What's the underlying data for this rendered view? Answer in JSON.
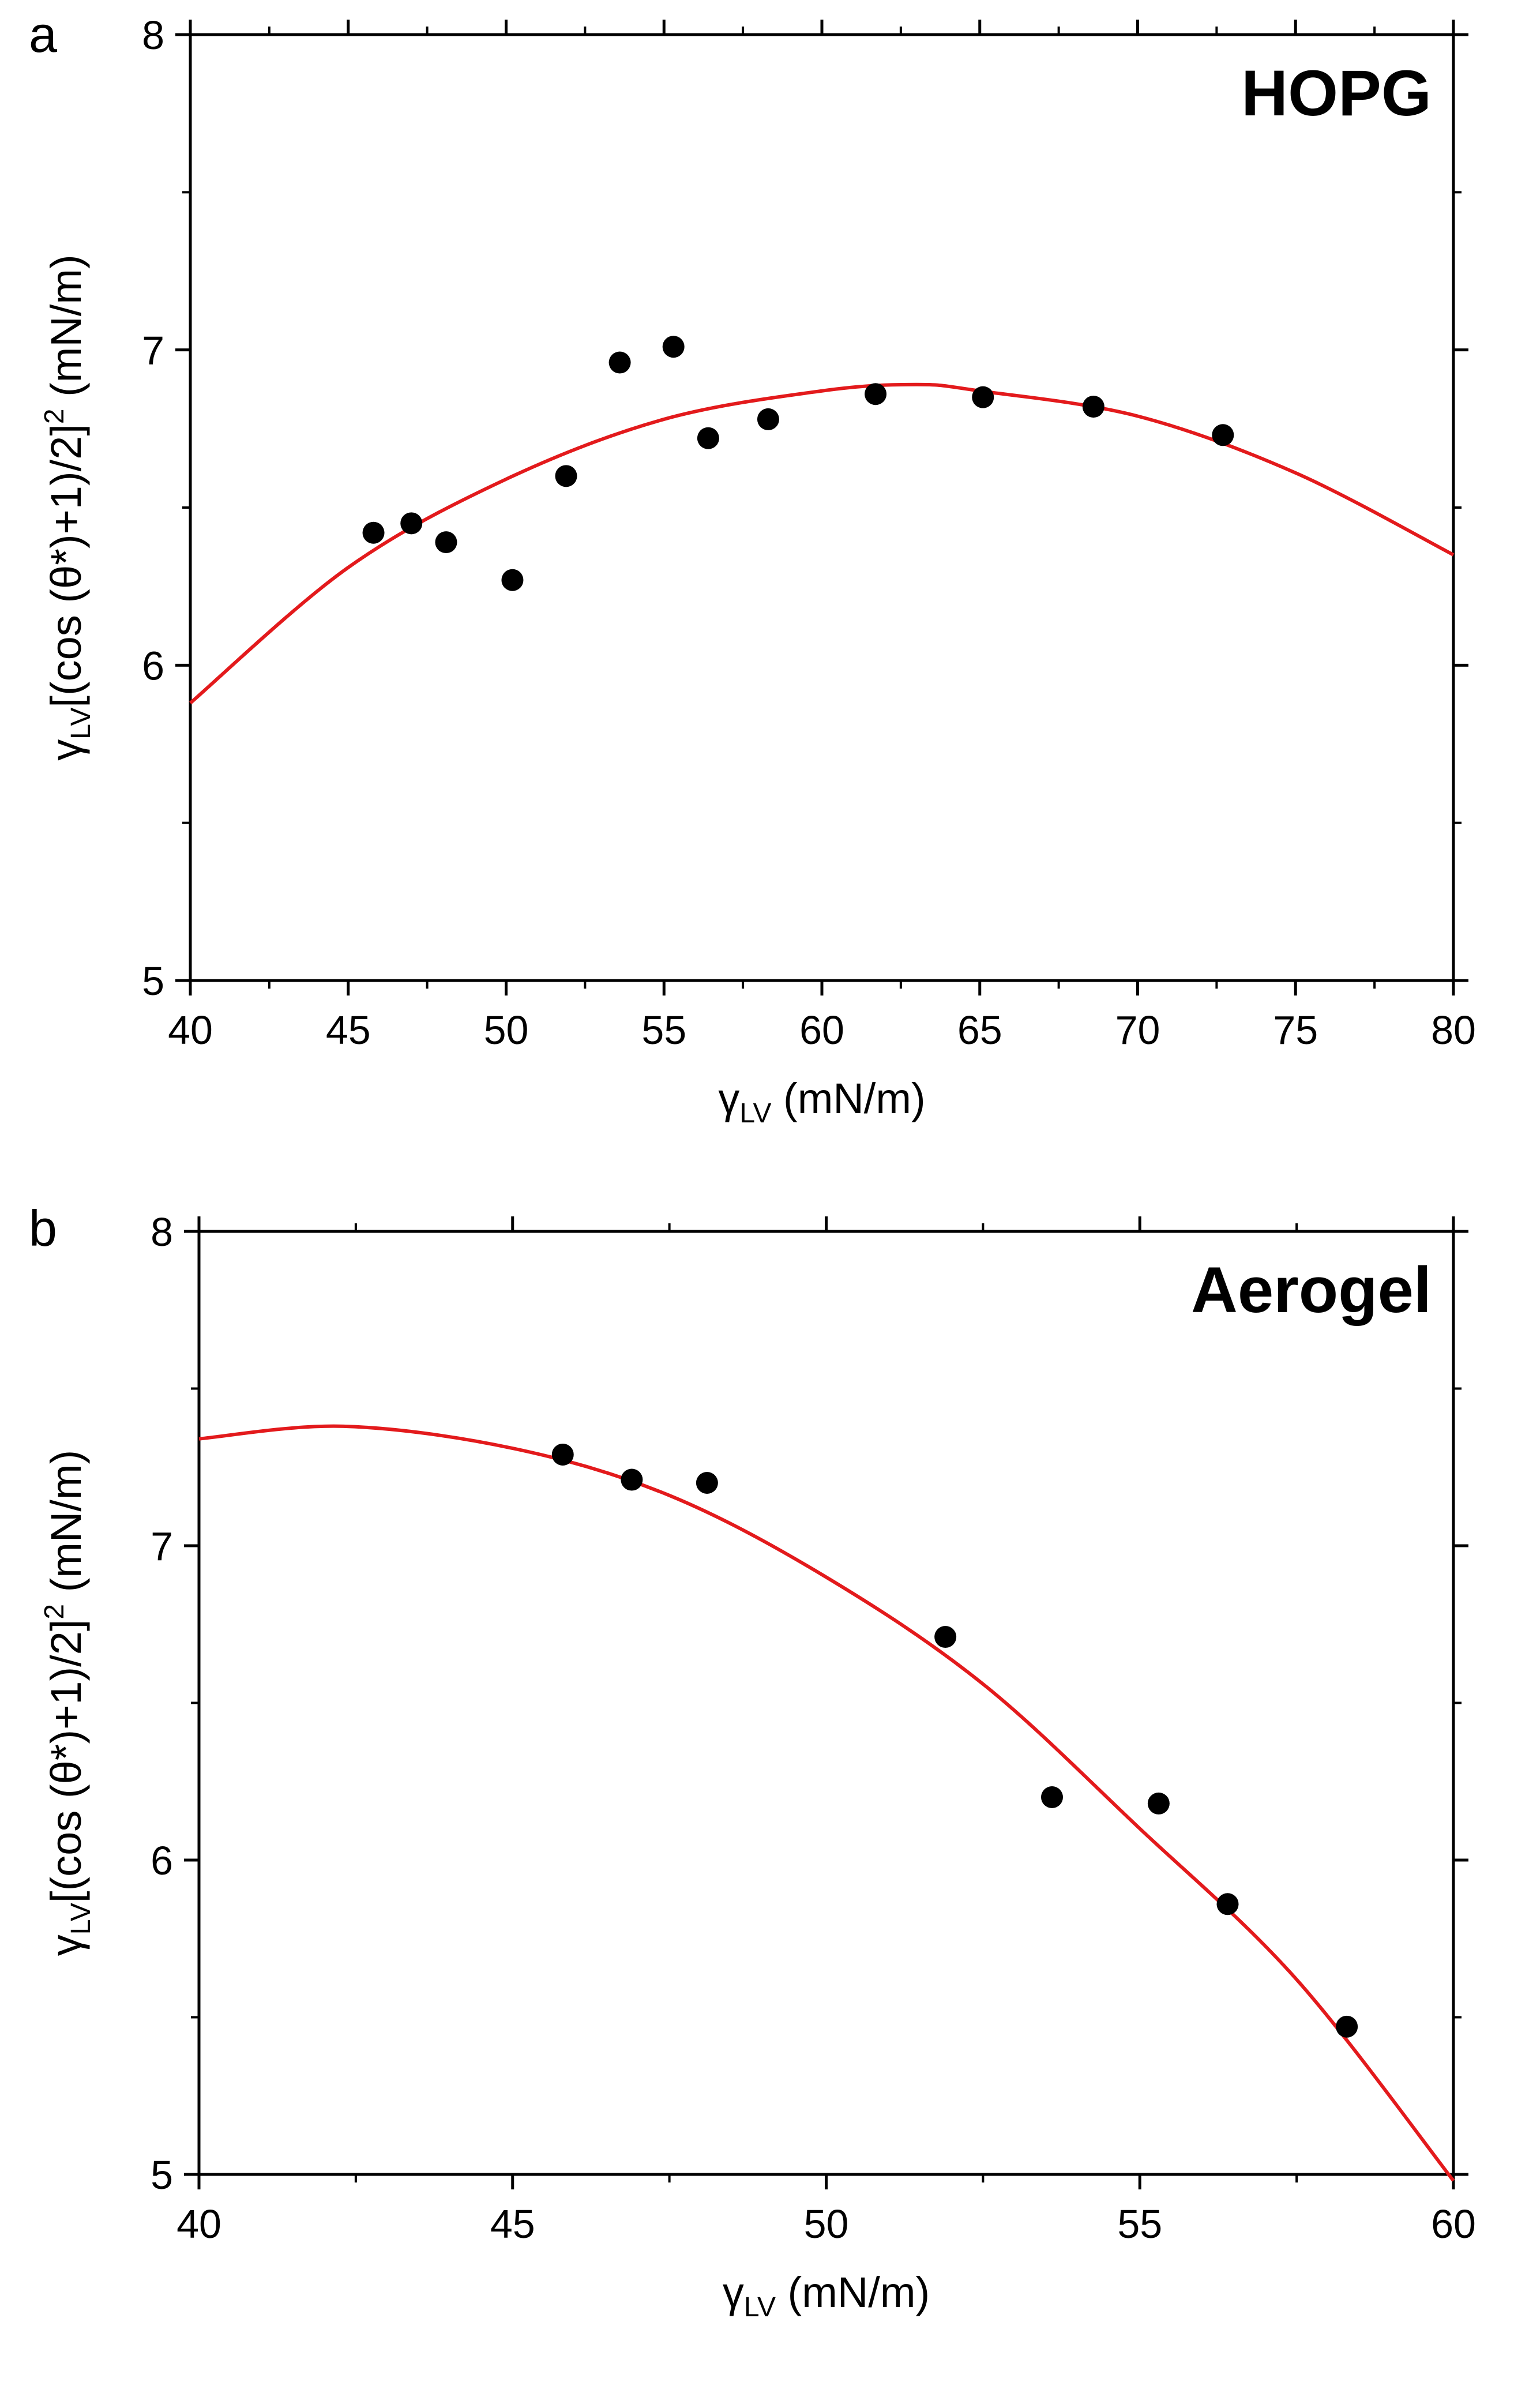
{
  "chart_data": [
    {
      "panel": "a",
      "type": "scatter",
      "title": "HOPG",
      "xlabel": {
        "symbol": "γ",
        "sub": "LV",
        "unit": " (mN/m)"
      },
      "ylabel": {
        "symbol": "γ",
        "sub": "LV",
        "expr": "[(cos (θ*)+1)/2]",
        "sup": "2",
        "unit": " (mN/m)"
      },
      "xlim": [
        40,
        80
      ],
      "ylim": [
        5,
        8
      ],
      "xticks": [
        40,
        45,
        50,
        55,
        60,
        65,
        70,
        75,
        80
      ],
      "yticks": [
        5,
        6,
        7,
        8
      ],
      "series": [
        {
          "name": "data",
          "marker": "circle",
          "x": [
            45.8,
            47.0,
            48.1,
            50.2,
            51.9,
            53.6,
            55.3,
            56.4,
            58.3,
            61.7,
            65.1,
            68.6,
            72.7
          ],
          "y": [
            6.42,
            6.45,
            6.39,
            6.27,
            6.6,
            6.96,
            7.01,
            6.72,
            6.78,
            6.86,
            6.85,
            6.82,
            6.73
          ]
        },
        {
          "name": "fit",
          "line": "curve",
          "x": [
            40,
            45,
            50,
            55,
            60,
            63,
            65,
            70,
            75,
            80
          ],
          "y": [
            5.88,
            6.31,
            6.59,
            6.78,
            6.87,
            6.89,
            6.87,
            6.79,
            6.61,
            6.35
          ]
        }
      ]
    },
    {
      "panel": "b",
      "type": "scatter",
      "title": "Aerogel",
      "xlabel": {
        "symbol": "γ",
        "sub": "LV",
        "unit": " (mN/m)"
      },
      "ylabel": {
        "symbol": "γ",
        "sub": "LV",
        "expr": "[(cos (θ*)+1)/2]",
        "sup": "2",
        "unit": " (mN/m)"
      },
      "xlim": [
        40,
        60
      ],
      "ylim": [
        5,
        8
      ],
      "xticks": [
        40,
        45,
        50,
        55,
        60
      ],
      "yticks": [
        5,
        6,
        7,
        8
      ],
      "series": [
        {
          "name": "data",
          "marker": "circle",
          "x": [
            45.8,
            46.9,
            48.1,
            51.9,
            53.6,
            55.3,
            56.4,
            58.3
          ],
          "y": [
            7.29,
            7.21,
            7.2,
            6.71,
            6.2,
            6.18,
            5.86,
            5.47
          ]
        },
        {
          "name": "fit",
          "line": "curve",
          "x": [
            40,
            42.3,
            45,
            47.5,
            50,
            52.5,
            55,
            57.5,
            60
          ],
          "y": [
            7.34,
            7.38,
            7.31,
            7.16,
            6.9,
            6.56,
            6.1,
            5.62,
            4.98
          ]
        }
      ]
    }
  ],
  "colors": {
    "fit": "#e31a1c",
    "points": "#000000",
    "axis": "#000000"
  }
}
